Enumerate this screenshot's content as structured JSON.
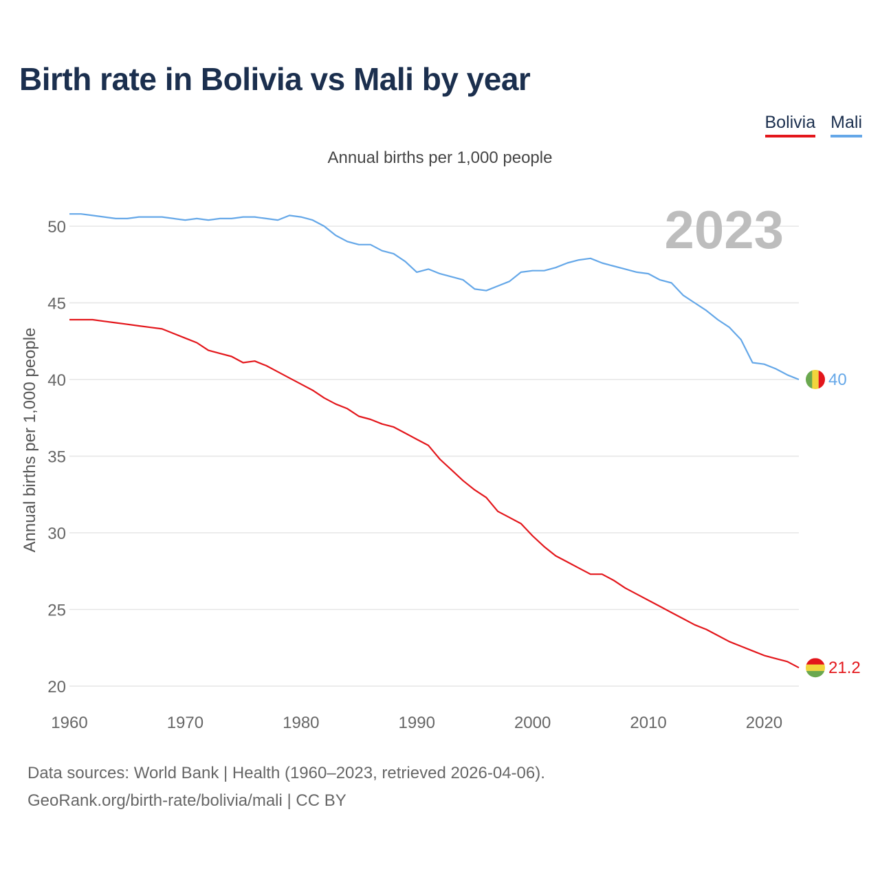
{
  "title": "Birth rate in Bolivia vs Mali by year",
  "legend": [
    {
      "label": "Bolivia",
      "color": "#e3161b"
    },
    {
      "label": "Mali",
      "color": "#64a7e8"
    }
  ],
  "footer": {
    "line1": "Data sources: World Bank | Health (1960–2023, retrieved 2026-04-06).",
    "line2": "GeoRank.org/birth-rate/bolivia/mali | CC BY"
  },
  "chart_data": {
    "type": "line",
    "title": "Birth rate in Bolivia vs Mali by year",
    "subtitle": "Annual births per 1,000 people",
    "ylabel": "Annual births per 1,000 people",
    "xlabel": "",
    "xlim": [
      1960,
      2023
    ],
    "ylim": [
      20,
      52
    ],
    "yticks": [
      20,
      25,
      30,
      35,
      40,
      45,
      50
    ],
    "xticks": [
      1960,
      1970,
      1980,
      1990,
      2000,
      2010,
      2020
    ],
    "grid": true,
    "year_watermark": "2023",
    "x": [
      1960,
      1961,
      1962,
      1963,
      1964,
      1965,
      1966,
      1967,
      1968,
      1969,
      1970,
      1971,
      1972,
      1973,
      1974,
      1975,
      1976,
      1977,
      1978,
      1979,
      1980,
      1981,
      1982,
      1983,
      1984,
      1985,
      1986,
      1987,
      1988,
      1989,
      1990,
      1991,
      1992,
      1993,
      1994,
      1995,
      1996,
      1997,
      1998,
      1999,
      2000,
      2001,
      2002,
      2003,
      2004,
      2005,
      2006,
      2007,
      2008,
      2009,
      2010,
      2011,
      2012,
      2013,
      2014,
      2015,
      2016,
      2017,
      2018,
      2019,
      2020,
      2021,
      2022,
      2023
    ],
    "series": [
      {
        "name": "Bolivia",
        "color": "#e3161b",
        "end_label": "21.2",
        "values": [
          43.9,
          43.9,
          43.9,
          43.8,
          43.7,
          43.6,
          43.5,
          43.4,
          43.3,
          43.0,
          42.7,
          42.4,
          41.9,
          41.7,
          41.5,
          41.1,
          41.2,
          40.9,
          40.5,
          40.1,
          39.7,
          39.3,
          38.8,
          38.4,
          38.1,
          37.6,
          37.4,
          37.1,
          36.9,
          36.5,
          36.1,
          35.7,
          34.8,
          34.1,
          33.4,
          32.8,
          32.3,
          31.4,
          31.0,
          30.6,
          29.8,
          29.1,
          28.5,
          28.1,
          27.7,
          27.3,
          27.3,
          26.9,
          26.4,
          26.0,
          25.6,
          25.2,
          24.8,
          24.4,
          24.0,
          23.7,
          23.3,
          22.9,
          22.6,
          22.3,
          22.0,
          21.8,
          21.6,
          21.2
        ]
      },
      {
        "name": "Mali",
        "color": "#64a7e8",
        "end_label": "40",
        "values": [
          50.8,
          50.8,
          50.7,
          50.6,
          50.5,
          50.5,
          50.6,
          50.6,
          50.6,
          50.5,
          50.4,
          50.5,
          50.4,
          50.5,
          50.5,
          50.6,
          50.6,
          50.5,
          50.4,
          50.7,
          50.6,
          50.4,
          50.0,
          49.4,
          49.0,
          48.8,
          48.8,
          48.4,
          48.2,
          47.7,
          47.0,
          47.2,
          46.9,
          46.7,
          46.5,
          45.9,
          45.8,
          46.1,
          46.4,
          47.0,
          47.1,
          47.1,
          47.3,
          47.6,
          47.8,
          47.9,
          47.6,
          47.4,
          47.2,
          47.0,
          46.9,
          46.5,
          46.3,
          45.5,
          45.0,
          44.5,
          43.9,
          43.4,
          42.6,
          41.1,
          41.0,
          40.7,
          40.3,
          40.0
        ]
      }
    ]
  }
}
